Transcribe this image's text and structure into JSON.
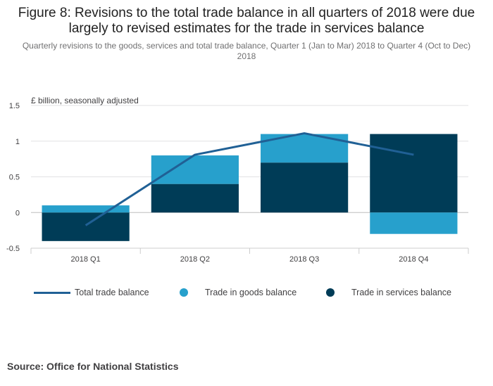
{
  "title": "Figure 8: Revisions to the total trade balance in all quarters of 2018 were due largely to revised estimates for the trade in services balance",
  "subtitle": "Quarterly revisions to the goods, services and total trade balance, Quarter 1 (Jan to Mar) 2018 to Quarter 4 (Oct to Dec) 2018",
  "source": "Source: Office for National Statistics",
  "colors": {
    "goods": "#27a0cc",
    "services": "#003c57",
    "total": "#206095",
    "grid": "#e2e2e3",
    "axis": "#cccccc"
  },
  "legend": {
    "total_label": "Total trade balance",
    "goods_label": "Trade in goods balance",
    "services_label": "Trade in services balance"
  },
  "chart_data": {
    "type": "bar",
    "stacked": true,
    "categories": [
      "2018 Q1",
      "2018 Q2",
      "2018 Q3",
      "2018 Q4"
    ],
    "series": [
      {
        "name": "Trade in services balance",
        "kind": "bar",
        "values": [
          -0.4,
          0.4,
          0.7,
          1.1
        ]
      },
      {
        "name": "Trade in goods balance",
        "kind": "bar",
        "values": [
          0.1,
          0.4,
          0.4,
          -0.3
        ]
      },
      {
        "name": "Total trade balance",
        "kind": "line",
        "values": [
          -0.18,
          0.81,
          1.11,
          0.81
        ]
      }
    ],
    "ylabel": "£ billion, seasonally adjusted",
    "ylim": [
      -0.5,
      1.5
    ],
    "yticks": [
      -0.5,
      0,
      0.5,
      1,
      1.5
    ],
    "ytick_labels": [
      "-0.5",
      "0",
      "0.5",
      "1",
      "1.5"
    ],
    "legend_position": "bottom"
  }
}
